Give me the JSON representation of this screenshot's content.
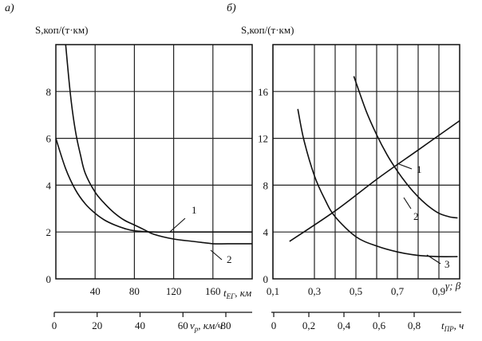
{
  "chart_data": [
    {
      "panel": "а)",
      "type": "line",
      "ylabel": "S,коп/(т·км)",
      "yticks": [
        "0",
        "2",
        "4",
        "6",
        "8"
      ],
      "ylim": [
        0,
        10
      ],
      "xlabel": "t_ЕГ, км",
      "xlabel_main": "t",
      "xlabel_sub": "ЕГ",
      "xlabel_unit": ", км",
      "xticks": [
        "40",
        "80",
        "120",
        "160"
      ],
      "xlim": [
        0,
        200
      ],
      "x2label": "v_p, км/ч",
      "x2label_main": "v",
      "x2label_sub": "p",
      "x2label_unit": ", км/ч",
      "x2ticks": [
        "0",
        "20",
        "40",
        "60",
        "80"
      ],
      "grid": true,
      "series": [
        {
          "name": "1",
          "x": [
            0,
            10,
            20,
            30,
            40,
            50,
            60,
            70,
            80,
            100,
            120,
            140,
            160,
            175,
            200
          ],
          "y": [
            6.0,
            4.7,
            3.8,
            3.2,
            2.8,
            2.5,
            2.3,
            2.15,
            2.05,
            2.0,
            2.0,
            2.0,
            2.0,
            2.0,
            2.0
          ]
        },
        {
          "name": "2",
          "x": [
            10,
            15,
            20,
            25,
            30,
            40,
            50,
            60,
            70,
            80,
            90,
            100,
            120,
            140,
            160,
            175,
            200
          ],
          "y": [
            10.0,
            7.8,
            6.3,
            5.3,
            4.5,
            3.7,
            3.2,
            2.8,
            2.5,
            2.3,
            2.1,
            1.9,
            1.7,
            1.6,
            1.5,
            1.5,
            1.5
          ]
        }
      ]
    },
    {
      "panel": "б)",
      "type": "line",
      "ylabel": "S,коп/(т·км)",
      "yticks": [
        "0",
        "4",
        "8",
        "12",
        "16"
      ],
      "ylim": [
        0,
        20
      ],
      "xlabel": "γ; β",
      "xticks": [
        "0,1",
        "0,3",
        "0,5",
        "0,7",
        "0,9"
      ],
      "xlim": [
        0.1,
        1.0
      ],
      "x2label": "t_ПР, ч",
      "x2label_main": "t",
      "x2label_sub": "ПР",
      "x2label_unit": ", ч",
      "x2ticks": [
        "0",
        "0,2",
        "0,4",
        "0,6",
        "0,8"
      ],
      "grid": true,
      "series": [
        {
          "name": "1",
          "x": [
            0.18,
            0.4,
            0.6,
            0.8,
            1.0
          ],
          "y": [
            3.2,
            5.8,
            8.5,
            11.0,
            13.5
          ]
        },
        {
          "name": "2",
          "x": [
            0.49,
            0.55,
            0.6,
            0.65,
            0.7,
            0.75,
            0.8,
            0.85,
            0.9,
            0.95,
            0.99
          ],
          "y": [
            17.3,
            14.3,
            12.3,
            10.6,
            9.2,
            8.0,
            7.0,
            6.2,
            5.6,
            5.3,
            5.2
          ]
        },
        {
          "name": "3",
          "x": [
            0.22,
            0.25,
            0.3,
            0.35,
            0.4,
            0.5,
            0.6,
            0.7,
            0.8,
            0.9,
            0.99
          ],
          "y": [
            14.5,
            11.8,
            8.8,
            6.8,
            5.3,
            3.6,
            2.8,
            2.3,
            2.0,
            1.9,
            1.9
          ]
        }
      ]
    }
  ]
}
